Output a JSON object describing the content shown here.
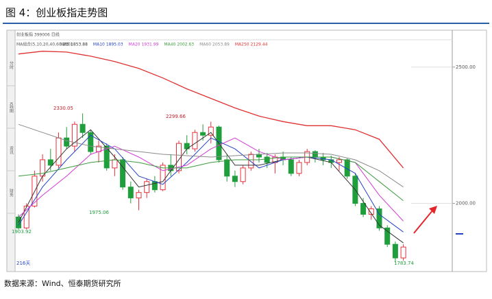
{
  "chart_data": {
    "type": "candlestick",
    "title": "图 4：创业板指走势图",
    "header": "创业板指 399006 日线",
    "legend_title": "MA组合(5,10,20,40,60,250)",
    "tabs": [
      "分时",
      "K线图",
      "资讯",
      "财务"
    ],
    "annotations": [
      "2330.05",
      "2299.66",
      "1975.06",
      "1783.74",
      "1903.92",
      "216天"
    ],
    "source": "数据来源：Wind、恒泰期货研究所",
    "ylim": [
      1750,
      2600
    ],
    "yticks": [
      {
        "value": 2500,
        "label": "2500.00"
      },
      {
        "value": 2000,
        "label": "2000.00"
      }
    ],
    "up_color": "#e8303a",
    "down_color": "#1f9e3c",
    "candles": {
      "open": [
        1950,
        1910,
        1990,
        2100,
        2160,
        2140,
        2240,
        2210,
        2290,
        2260,
        2190,
        2210,
        2130,
        2160,
        2060,
        2020,
        2040,
        2080,
        2050,
        2140,
        2120,
        2220,
        2200,
        2260,
        2250,
        2280,
        2160,
        2100,
        2080,
        2130,
        2180,
        2170,
        2150,
        2170,
        2160,
        2110,
        2150,
        2190,
        2170,
        2160,
        2150,
        2160,
        2100,
        2000,
        1960,
        1980,
        1910,
        1850,
        1800
      ],
      "high": [
        1960,
        2000,
        2120,
        2180,
        2200,
        2260,
        2280,
        2300,
        2330.05,
        2270,
        2230,
        2220,
        2180,
        2170,
        2080,
        2050,
        2090,
        2100,
        2150,
        2180,
        2230,
        2250,
        2270,
        2290,
        2299.66,
        2285,
        2180,
        2120,
        2140,
        2190,
        2200,
        2185,
        2180,
        2190,
        2170,
        2160,
        2200,
        2195,
        2185,
        2175,
        2170,
        2165,
        2110,
        2020,
        1990,
        1990,
        1920,
        1860,
        1850
      ],
      "low": [
        1903.92,
        1905,
        1985,
        2080,
        2120,
        2130,
        2200,
        2190,
        2240,
        2180,
        2150,
        2120,
        2100,
        2050,
        2000,
        1975.06,
        2020,
        2040,
        2045,
        2100,
        2110,
        2180,
        2190,
        2230,
        2220,
        2150,
        2080,
        2060,
        2070,
        2120,
        2150,
        2130,
        2110,
        2140,
        2100,
        2100,
        2140,
        2150,
        2140,
        2130,
        2120,
        2090,
        1990,
        1950,
        1940,
        1900,
        1840,
        1783.74,
        1790
      ],
      "close": [
        1910,
        1990,
        2100,
        2160,
        2140,
        2240,
        2210,
        2290,
        2260,
        2190,
        2210,
        2130,
        2160,
        2060,
        2020,
        2040,
        2080,
        2050,
        2140,
        2120,
        2220,
        2200,
        2260,
        2250,
        2280,
        2160,
        2100,
        2080,
        2130,
        2180,
        2170,
        2150,
        2170,
        2160,
        2110,
        2150,
        2190,
        2170,
        2160,
        2150,
        2160,
        2100,
        2000,
        1960,
        1980,
        1910,
        1850,
        1800,
        1840
      ]
    },
    "series": [
      {
        "name": "MA5",
        "value_label": 1853.88,
        "color": "#333333",
        "x": [
          0,
          3,
          6,
          9,
          12,
          15,
          18,
          21,
          24,
          27,
          30,
          33,
          36,
          39,
          42,
          45,
          48
        ],
        "values": [
          1930,
          2100,
          2200,
          2270,
          2170,
          2060,
          2080,
          2200,
          2260,
          2140,
          2140,
          2160,
          2170,
          2150,
          2050,
          1920,
          1855
        ]
      },
      {
        "name": "MA10",
        "value_label": 1895.03,
        "color": "#2342c8",
        "x": [
          0,
          3,
          6,
          9,
          12,
          15,
          18,
          21,
          24,
          27,
          30,
          33,
          36,
          39,
          42,
          45,
          48
        ],
        "values": [
          1920,
          2060,
          2160,
          2250,
          2200,
          2100,
          2070,
          2150,
          2240,
          2200,
          2130,
          2160,
          2170,
          2160,
          2110,
          1960,
          1895
        ]
      },
      {
        "name": "MA20",
        "value_label": 1931.99,
        "color": "#d23ad2",
        "x": [
          0,
          3,
          6,
          9,
          12,
          15,
          18,
          21,
          24,
          27,
          30,
          33,
          36,
          39,
          42,
          45,
          48
        ],
        "values": [
          1950,
          2030,
          2100,
          2180,
          2210,
          2170,
          2120,
          2140,
          2200,
          2240,
          2190,
          2160,
          2170,
          2170,
          2150,
          2030,
          1935
        ]
      },
      {
        "name": "MA40",
        "value_label": 2002.63,
        "color": "#3c9a3c",
        "x": [
          0,
          3,
          6,
          9,
          12,
          15,
          18,
          21,
          24,
          27,
          30,
          33,
          36,
          39,
          42,
          45,
          48
        ],
        "values": [
          2100,
          2110,
          2130,
          2150,
          2160,
          2150,
          2130,
          2130,
          2150,
          2160,
          2160,
          2170,
          2170,
          2170,
          2150,
          2080,
          2010
        ]
      },
      {
        "name": "MA60",
        "value_label": 2053.89,
        "color": "#8a8a8a",
        "x": [
          0,
          3,
          6,
          9,
          12,
          15,
          18,
          21,
          24,
          27,
          30,
          33,
          36,
          39,
          42,
          45,
          48
        ],
        "values": [
          2290,
          2260,
          2230,
          2210,
          2200,
          2190,
          2180,
          2175,
          2170,
          2175,
          2180,
          2185,
          2185,
          2180,
          2160,
          2120,
          2060
        ]
      },
      {
        "name": "MA250",
        "value_label": 2129.44,
        "color": "#e03030",
        "x": [
          0,
          3,
          6,
          9,
          12,
          15,
          18,
          21,
          24,
          27,
          30,
          33,
          36,
          39,
          42,
          45,
          48
        ],
        "values": [
          2548,
          2558,
          2555,
          2540,
          2520,
          2495,
          2460,
          2420,
          2385,
          2350,
          2320,
          2300,
          2285,
          2285,
          2270,
          2235,
          2130
        ]
      }
    ]
  }
}
